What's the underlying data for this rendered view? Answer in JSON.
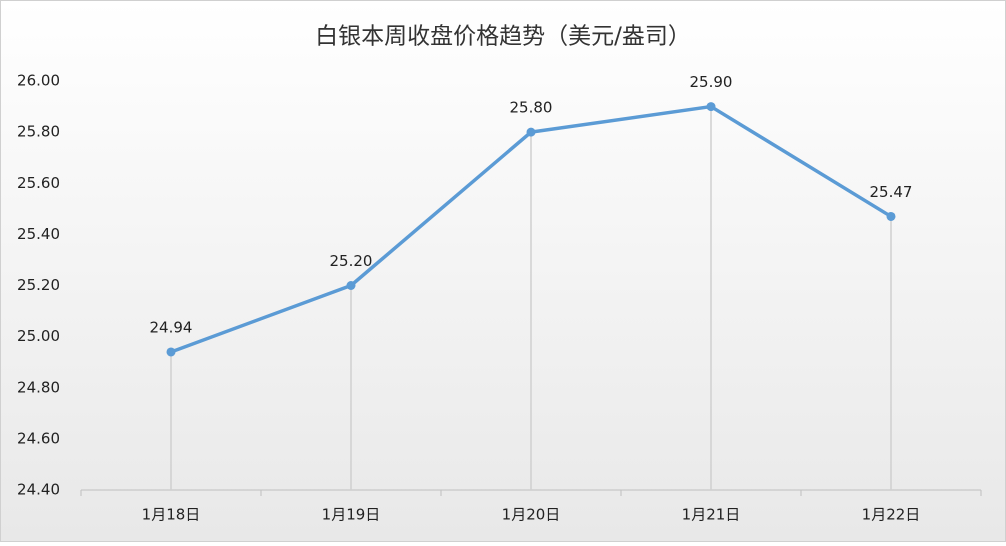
{
  "chart_data": {
    "type": "line",
    "title": "白银本周收盘价格趋势（美元/盎司）",
    "categories": [
      "1月18日",
      "1月19日",
      "1月20日",
      "1月21日",
      "1月22日"
    ],
    "values": [
      24.94,
      25.2,
      25.8,
      25.9,
      25.47
    ],
    "value_labels": [
      "24.94",
      "25.20",
      "25.80",
      "25.90",
      "25.47"
    ],
    "color": "#5b9bd5",
    "ylim": [
      24.4,
      26.0
    ],
    "yticks": [
      {
        "value": 24.4,
        "label": "24.40"
      },
      {
        "value": 24.6,
        "label": "24.60"
      },
      {
        "value": 24.8,
        "label": "24.80"
      },
      {
        "value": 25.0,
        "label": "25.00"
      },
      {
        "value": 25.2,
        "label": "25.20"
      },
      {
        "value": 25.4,
        "label": "25.40"
      },
      {
        "value": 25.6,
        "label": "25.60"
      },
      {
        "value": 25.8,
        "label": "25.80"
      },
      {
        "value": 26.0,
        "label": "26.00"
      }
    ],
    "drop_lines": true,
    "grid": false
  }
}
